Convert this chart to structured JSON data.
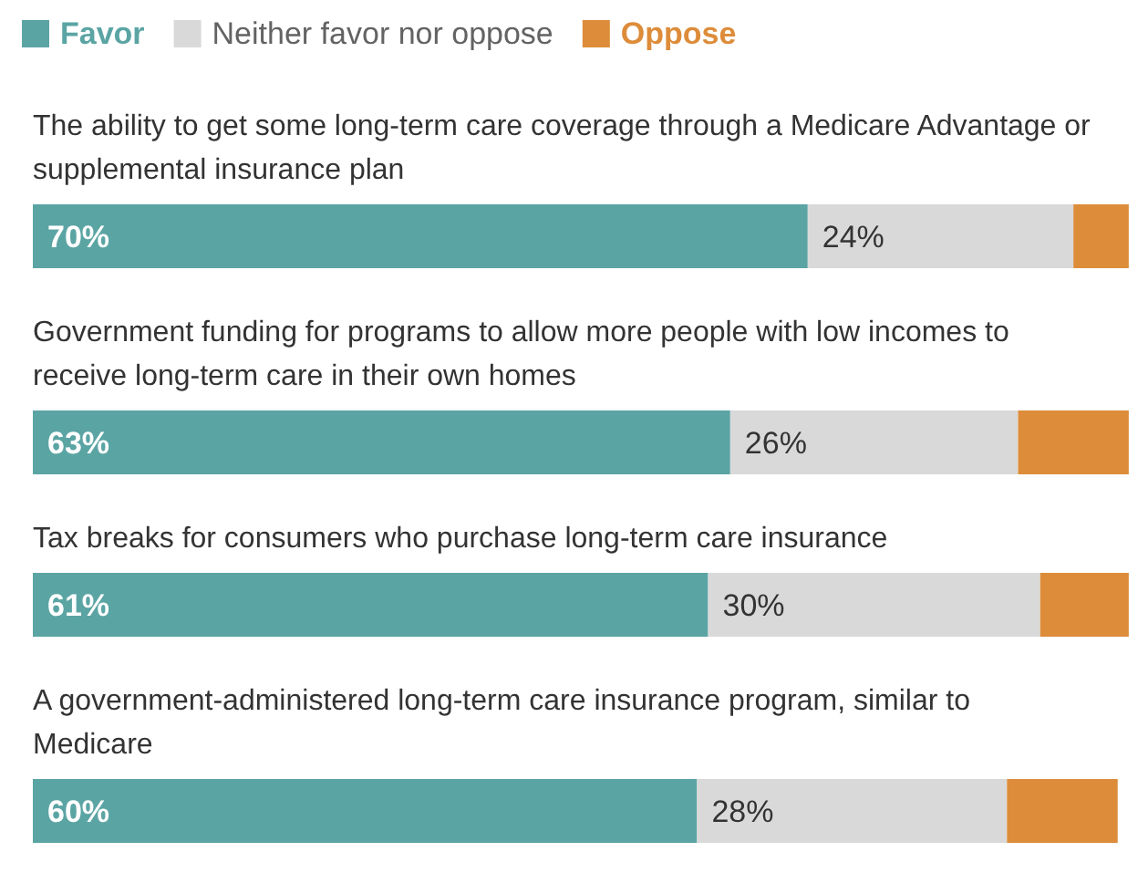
{
  "chart_data": {
    "type": "bar",
    "orientation": "horizontal",
    "stacked": true,
    "legend": "top left",
    "categories": [
      "The ability to get some long-term care coverage through a Medicare Advantage or supplemental insurance plan",
      "Government funding for programs to allow more people with low incomes to receive long-term care in their own homes",
      "Tax breaks for consumers who purchase long-term care insurance",
      "A government-administered long-term care insurance program, similar to Medicare"
    ],
    "xlim": [
      0,
      100
    ],
    "series": [
      {
        "name": "Favor",
        "color": "#5ba4a4",
        "values": [
          70,
          63,
          61,
          60
        ],
        "value_labels": [
          "70%",
          "63%",
          "61%",
          "60%"
        ]
      },
      {
        "name": "Neither favor nor oppose",
        "color": "#d9d9d9",
        "values": [
          24,
          26,
          30,
          28
        ],
        "value_labels": [
          "24%",
          "26%",
          "30%",
          "28%"
        ]
      },
      {
        "name": "Oppose",
        "color": "#dd8c3a",
        "values": [
          5,
          10,
          8,
          10
        ]
      }
    ]
  }
}
